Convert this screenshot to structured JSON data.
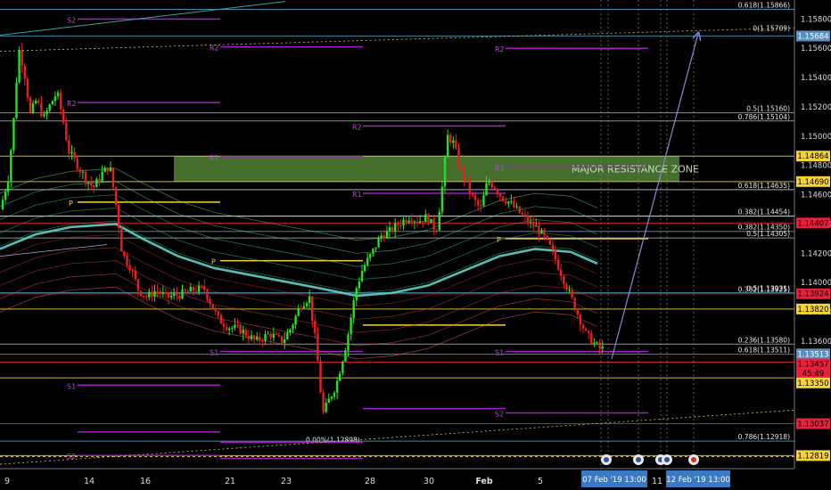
{
  "chart_data": {
    "type": "candlestick",
    "title": "",
    "ylim": [
      1.1273,
      1.1593
    ],
    "price_ticks": [
      1.158,
      1.156,
      1.154,
      1.152,
      1.15,
      1.148,
      1.146,
      1.144,
      1.142,
      1.14,
      1.138,
      1.136
    ],
    "x_tick_labels": [
      "9",
      "14",
      "16",
      "21",
      "23",
      "28",
      "30",
      "Feb",
      "5",
      "7",
      "11",
      "12"
    ],
    "time_labels": [
      {
        "text": "07 Feb '19   13:00"
      },
      {
        "text": "12 Feb '19   13:00"
      }
    ],
    "highlighted_time_tags": [
      "07 Feb '19   13:00",
      "12 Feb '19   13:00"
    ],
    "zone": {
      "label": "MAJOR RESISTANCE ZONE",
      "low": 1.1469,
      "high": 1.14864,
      "color": "#7ec850"
    },
    "fib_labels": [
      {
        "text": "0.618(1.15866)",
        "price": 1.15866
      },
      {
        "text": "0(1.15709)",
        "price": 1.15709
      },
      {
        "text": "0.5(1.15160)",
        "price": 1.1516
      },
      {
        "text": "0.786(1.15104)",
        "price": 1.15104
      },
      {
        "text": "0.618(1.14635)",
        "price": 1.14635
      },
      {
        "text": "0.382(1.14454)",
        "price": 1.14454
      },
      {
        "text": "0.382(1.14350)",
        "price": 1.1435
      },
      {
        "text": "0.5(1.14305)",
        "price": 1.14305
      },
      {
        "text": "0.382(1.13925)",
        "price": 1.13925
      },
      {
        "text": "0.5(1.13931)",
        "price": 1.13931
      },
      {
        "text": "0.236(1.13580)",
        "price": 1.1358
      },
      {
        "text": "0.618(1.13511)",
        "price": 1.13511
      },
      {
        "text": "0.786(1.12918)",
        "price": 1.12918
      },
      {
        "text": "0.00%(1.12898)",
        "price": 1.12898
      }
    ],
    "right_tags": [
      {
        "text": "1.15684",
        "price": 1.15684,
        "bg": "#5b8ec1",
        "fg": "#ffffff"
      },
      {
        "text": "1.14864",
        "price": 1.14864,
        "bg": "#f5d238",
        "fg": "#000000"
      },
      {
        "text": "1.14690",
        "price": 1.1469,
        "bg": "#f5d238",
        "fg": "#000000"
      },
      {
        "text": "1.14407",
        "price": 1.14407,
        "bg": "#e8203c",
        "fg": "#000000"
      },
      {
        "text": "1.13924",
        "price": 1.13924,
        "bg": "#e8203c",
        "fg": "#000000"
      },
      {
        "text": "1.13820",
        "price": 1.1382,
        "bg": "#f5d238",
        "fg": "#000000"
      },
      {
        "text": "1.13513",
        "price": 1.13513,
        "bg": "#5b8ec1",
        "fg": "#ffffff"
      },
      {
        "text": "1.13457",
        "price": 1.13445,
        "bg": "#e8203c",
        "fg": "#000000"
      },
      {
        "text": "45:49",
        "price": 1.1338,
        "bg": "#e8203c",
        "fg": "#000000"
      },
      {
        "text": "1.13350",
        "price": 1.13315,
        "bg": "#f5d238",
        "fg": "#000000"
      },
      {
        "text": "1.13037",
        "price": 1.13037,
        "bg": "#e8203c",
        "fg": "#000000"
      },
      {
        "text": "1.12819",
        "price": 1.12819,
        "bg": "#f5d238",
        "fg": "#000000"
      }
    ],
    "pivot_labels": [
      "R2",
      "R1",
      "P",
      "S1",
      "S2"
    ],
    "legend": "",
    "grid": false
  }
}
